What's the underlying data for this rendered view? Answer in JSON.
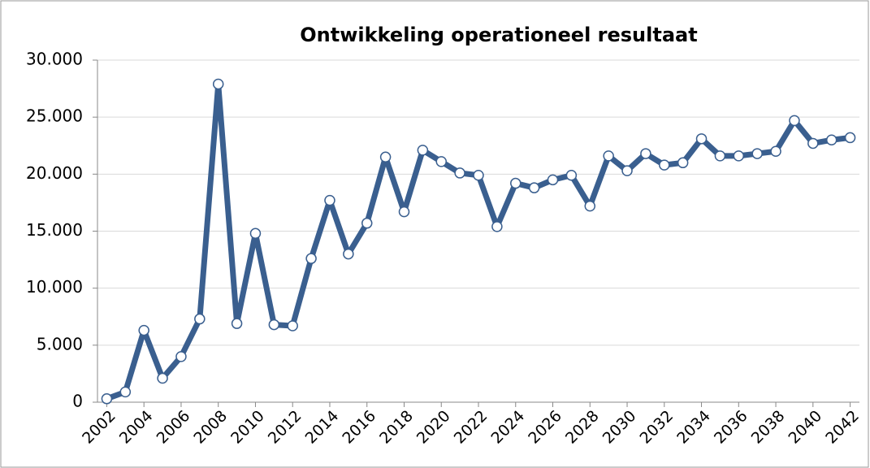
{
  "chart_data": {
    "type": "line",
    "title": "Ontwikkeling operationeel resultaat",
    "x": [
      2002,
      2003,
      2004,
      2005,
      2006,
      2007,
      2008,
      2009,
      2010,
      2011,
      2012,
      2013,
      2014,
      2015,
      2016,
      2017,
      2018,
      2019,
      2020,
      2021,
      2022,
      2023,
      2024,
      2025,
      2026,
      2027,
      2028,
      2029,
      2030,
      2031,
      2032,
      2033,
      2034,
      2035,
      2036,
      2037,
      2038,
      2039,
      2040,
      2041,
      2042
    ],
    "series": [
      {
        "name": "Operationeel resultaat",
        "color": "#3a5f8f",
        "values": [
          300,
          900,
          6300,
          2100,
          4000,
          7300,
          27900,
          6900,
          14800,
          6800,
          6700,
          12600,
          17700,
          13000,
          15700,
          21500,
          16700,
          22100,
          21100,
          20100,
          19900,
          15400,
          19200,
          18800,
          19500,
          19900,
          17200,
          21600,
          20300,
          21800,
          20800,
          21000,
          23100,
          21600,
          21600,
          21800,
          22000,
          24700,
          22700,
          23000,
          23200
        ]
      }
    ],
    "xlim": [
      2001.5,
      2042.5
    ],
    "xticks": [
      2002,
      2004,
      2006,
      2008,
      2010,
      2012,
      2014,
      2016,
      2018,
      2020,
      2022,
      2024,
      2026,
      2028,
      2030,
      2032,
      2034,
      2036,
      2038,
      2040,
      2042
    ],
    "ylim": [
      0,
      30000
    ],
    "yticks": [
      0,
      {
        "value": 5000,
        "label": "5.000"
      },
      {
        "value": 10000,
        "label": "10.000"
      },
      {
        "value": 15000,
        "label": "15.000"
      },
      {
        "value": 20000,
        "label": "20.000"
      },
      {
        "value": 25000,
        "label": "25.000"
      },
      {
        "value": 30000,
        "label": "30.000"
      }
    ],
    "grid": true
  }
}
